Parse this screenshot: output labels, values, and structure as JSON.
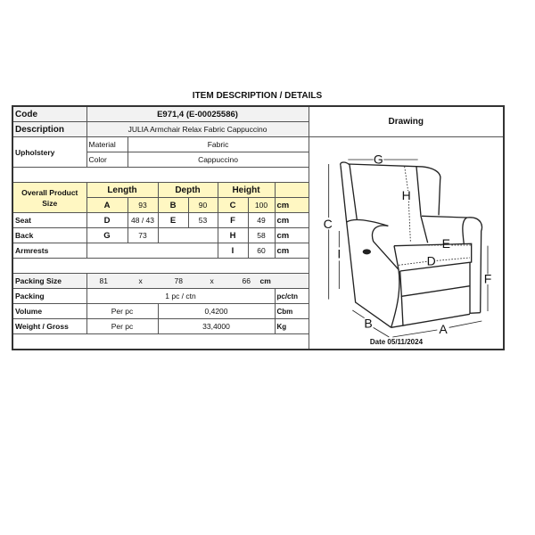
{
  "title": "ITEM DESCRIPTION / DETAILS",
  "code": {
    "label": "Code",
    "value": "E971,4 (E-00025586)"
  },
  "description": {
    "label": "Description",
    "value": "JULIA Armchair Relax Fabric Cappuccino"
  },
  "upholstery": {
    "label": "Upholstery",
    "material_label": "Material",
    "material": "Fabric",
    "color_label": "Color",
    "color": "Cappuccino"
  },
  "drawing": {
    "label": "Drawing",
    "dim_labels": [
      "A",
      "B",
      "C",
      "D",
      "E",
      "F",
      "G",
      "H",
      "I"
    ]
  },
  "overall": {
    "label": "Overall Product Size",
    "length": "Length",
    "depth": "Depth",
    "height": "Height",
    "a": "A",
    "a_val": "93",
    "b": "B",
    "b_val": "90",
    "c": "C",
    "c_val": "100",
    "unit": "cm"
  },
  "seat": {
    "label": "Seat",
    "d": "D",
    "d_val": "48 / 43",
    "e": "E",
    "e_val": "53",
    "f": "F",
    "f_val": "49",
    "unit": "cm"
  },
  "back": {
    "label": "Back",
    "g": "G",
    "g_val": "73",
    "h": "H",
    "h_val": "58",
    "unit": "cm"
  },
  "armrests": {
    "label": "Armrests",
    "i": "I",
    "i_val": "60",
    "unit": "cm"
  },
  "packing_size": {
    "label": "Packing Size",
    "l": "81",
    "x1": "x",
    "w": "78",
    "x2": "x",
    "h": "66",
    "unit": "cm"
  },
  "packing": {
    "label": "Packing",
    "value": "1 pc / ctn",
    "unit": "pc/ctn"
  },
  "volume": {
    "label": "Volume",
    "per": "Per pc",
    "value": "0,4200",
    "unit": "Cbm"
  },
  "weight": {
    "label": "Weight / Gross",
    "per": "Per pc",
    "value": "33,4000",
    "unit": "Kg"
  },
  "date": "Date 05/11/2024",
  "colors": {
    "highlight": "#fff7c2",
    "header_gray": "#f2f2f2"
  }
}
